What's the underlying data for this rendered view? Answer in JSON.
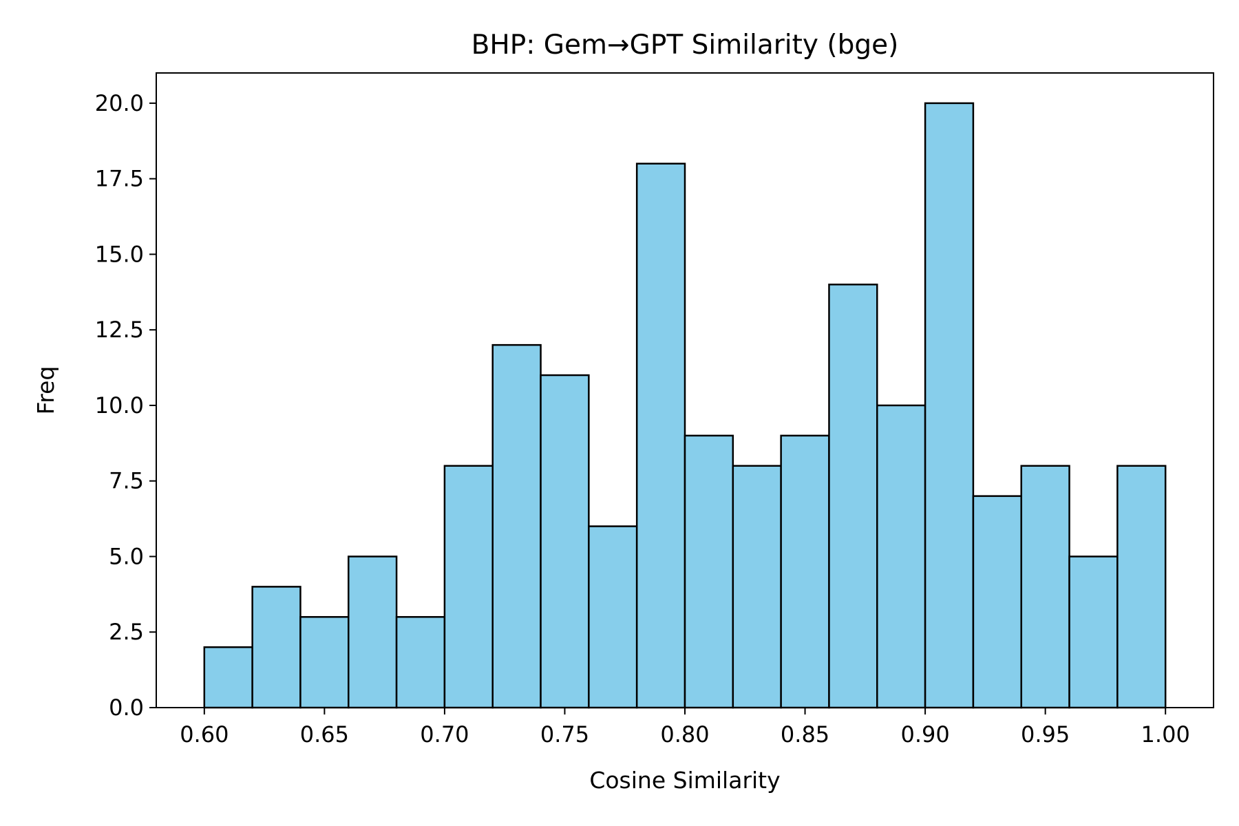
{
  "chart_data": {
    "type": "bar",
    "title": "BHP: Gem→GPT Similarity (bge)",
    "xlabel": "Cosine Similarity",
    "ylabel": "Freq",
    "bin_edges": [
      0.6,
      0.62,
      0.64,
      0.66,
      0.68,
      0.7,
      0.72,
      0.74,
      0.76,
      0.78,
      0.8,
      0.82,
      0.84,
      0.86,
      0.88,
      0.9,
      0.92,
      0.94,
      0.96,
      0.98,
      1.0
    ],
    "values": [
      2,
      4,
      3,
      5,
      3,
      8,
      12,
      11,
      6,
      18,
      9,
      8,
      9,
      14,
      10,
      20,
      7,
      8,
      5,
      8
    ],
    "xlim": [
      0.58,
      1.02
    ],
    "ylim": [
      0,
      21
    ],
    "xticks": [
      0.6,
      0.65,
      0.7,
      0.75,
      0.8,
      0.85,
      0.9,
      0.95,
      1.0
    ],
    "xtick_labels": [
      "0.60",
      "0.65",
      "0.70",
      "0.75",
      "0.80",
      "0.85",
      "0.90",
      "0.95",
      "1.00"
    ],
    "yticks": [
      0,
      2.5,
      5,
      7.5,
      10,
      12.5,
      15,
      17.5,
      20
    ],
    "ytick_labels": [
      "0.0",
      "2.5",
      "5.0",
      "7.5",
      "10.0",
      "12.5",
      "15.0",
      "17.5",
      "20.0"
    ],
    "grid": false,
    "bar_color": "#87CEEB",
    "edge_color": "#000000"
  }
}
